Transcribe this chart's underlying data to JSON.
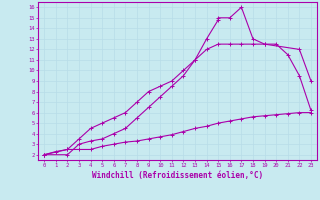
{
  "xlabel": "Windchill (Refroidissement éolien,°C)",
  "bg_color": "#c8eaf0",
  "line_color": "#aa00aa",
  "grid_color": "#b8dde8",
  "xlim": [
    -0.5,
    23.5
  ],
  "ylim": [
    1.5,
    16.5
  ],
  "xticks": [
    0,
    1,
    2,
    3,
    4,
    5,
    6,
    7,
    8,
    9,
    10,
    11,
    12,
    13,
    14,
    15,
    16,
    17,
    18,
    19,
    20,
    21,
    22,
    23
  ],
  "yticks": [
    2,
    3,
    4,
    5,
    6,
    7,
    8,
    9,
    10,
    11,
    12,
    13,
    14,
    15,
    16
  ],
  "line1_x": [
    0,
    1,
    2,
    3,
    4,
    5,
    6,
    7,
    8,
    9,
    10,
    11,
    12,
    13,
    14,
    15,
    16,
    17,
    18,
    19,
    20,
    21,
    22,
    23
  ],
  "line1_y": [
    2.0,
    2.3,
    2.5,
    2.5,
    2.5,
    2.8,
    3.0,
    3.2,
    3.3,
    3.5,
    3.7,
    3.9,
    4.2,
    4.5,
    4.7,
    5.0,
    5.2,
    5.4,
    5.6,
    5.7,
    5.8,
    5.9,
    6.0,
    6.0
  ],
  "line2_x": [
    0,
    2,
    3,
    4,
    5,
    6,
    7,
    8,
    9,
    10,
    11,
    12,
    13,
    14,
    15,
    16,
    17,
    18,
    19,
    20,
    21,
    22,
    23
  ],
  "line2_y": [
    2.0,
    2.5,
    3.5,
    4.5,
    5.0,
    5.5,
    6.0,
    7.0,
    8.0,
    8.5,
    9.0,
    10.0,
    11.0,
    12.0,
    12.5,
    12.5,
    12.5,
    12.5,
    12.5,
    12.5,
    11.5,
    9.5,
    6.2
  ],
  "line3_x": [
    0,
    2,
    3,
    4,
    5,
    6,
    7,
    8,
    9,
    10,
    11,
    12,
    13,
    14,
    15,
    15,
    16,
    17,
    18,
    19,
    22,
    23
  ],
  "line3_y": [
    2.0,
    2.0,
    3.0,
    3.3,
    3.5,
    4.0,
    4.5,
    5.5,
    6.5,
    7.5,
    8.5,
    9.5,
    11.0,
    13.0,
    14.8,
    15.0,
    15.0,
    16.0,
    13.0,
    12.5,
    12.0,
    9.0
  ]
}
